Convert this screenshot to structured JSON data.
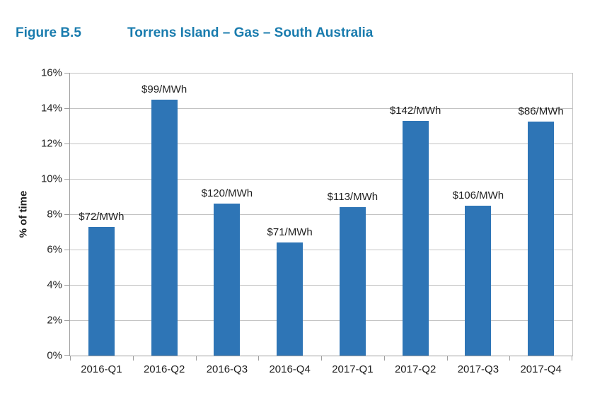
{
  "figure": {
    "label": "Figure B.5",
    "title": "Torrens Island – Gas – South Australia",
    "title_color": "#1A7CAE"
  },
  "chart_data": {
    "type": "bar",
    "title": "Figure B.5 Torrens Island – Gas – South Australia",
    "xlabel": "",
    "ylabel": "% of time",
    "ylim": [
      0,
      16
    ],
    "ytick_step": 2,
    "ytick_suffix": "%",
    "grid": true,
    "legend": false,
    "categories": [
      "2016-Q1",
      "2016-Q2",
      "2016-Q3",
      "2016-Q4",
      "2017-Q1",
      "2017-Q2",
      "2017-Q3",
      "2017-Q4"
    ],
    "values": [
      7.3,
      14.5,
      8.6,
      6.4,
      8.4,
      13.3,
      8.5,
      13.25
    ],
    "bar_labels": [
      "$72/MWh",
      "$99/MWh",
      "$120/MWh",
      "$71/MWh",
      "$113/MWh",
      "$142/MWh",
      "$106/MWh",
      "$86/MWh"
    ],
    "colors": {
      "bar": "#2E75B6",
      "gridline": "#C3C3C3",
      "axis": "#9E9E9E",
      "text": "#1F1F1F"
    }
  }
}
